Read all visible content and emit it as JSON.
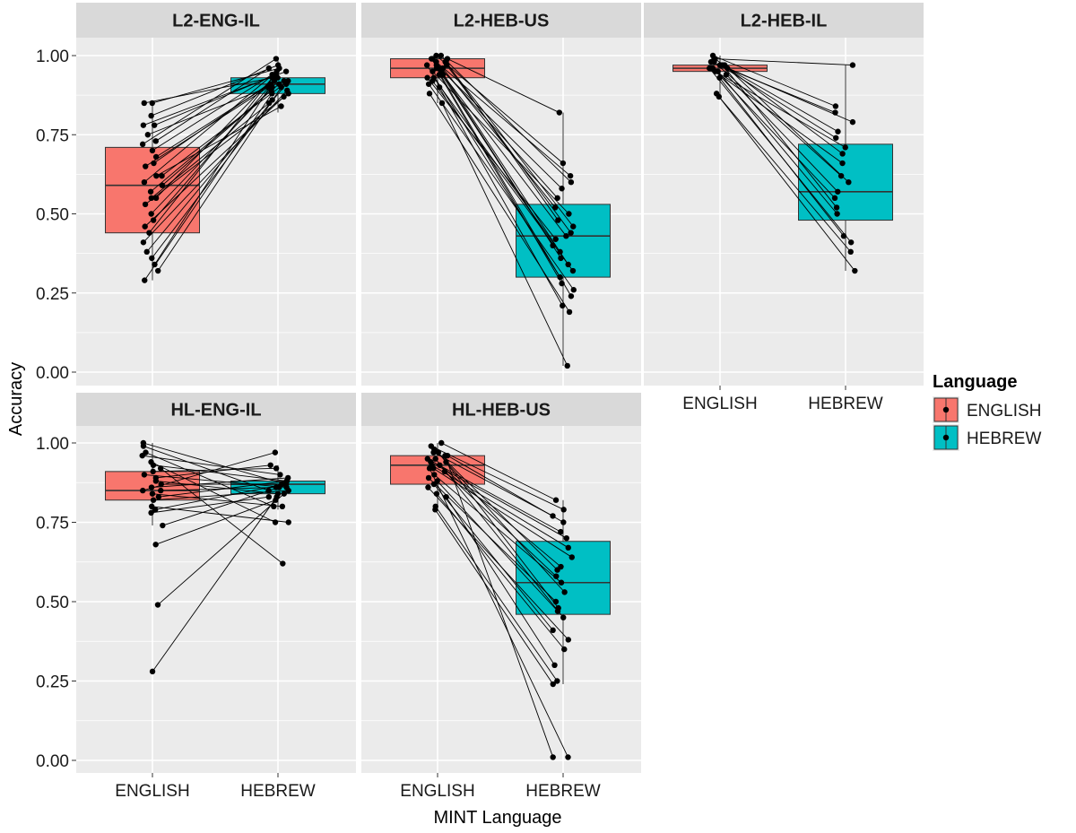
{
  "chart_data": {
    "type": "boxplot",
    "xlabel": "MINT Language",
    "ylabel": "Accuracy",
    "ylim": [
      0,
      1
    ],
    "yticks": [
      "0.00",
      "0.25",
      "0.50",
      "0.75",
      "1.00"
    ],
    "categories": [
      "ENGLISH",
      "HEBREW"
    ],
    "grid": true,
    "legend": {
      "title": "Language",
      "placement": "right",
      "entries": [
        "ENGLISH",
        "HEBREW"
      ]
    },
    "colors": {
      "ENGLISH": "#F8766D",
      "HEBREW": "#00BFC4"
    },
    "panels": [
      {
        "title": "L2-ENG-IL",
        "boxes": {
          "ENGLISH": {
            "lower": 0.29,
            "q1": 0.44,
            "median": 0.59,
            "q3": 0.71,
            "upper": 0.85
          },
          "HEBREW": {
            "lower": 0.82,
            "q1": 0.88,
            "median": 0.91,
            "q3": 0.93,
            "upper": 0.99
          }
        },
        "pairs": [
          [
            0.85,
            0.96
          ],
          [
            0.85,
            0.93
          ],
          [
            0.81,
            0.97
          ],
          [
            0.78,
            0.95
          ],
          [
            0.78,
            0.94
          ],
          [
            0.75,
            0.92
          ],
          [
            0.73,
            0.96
          ],
          [
            0.7,
            0.94
          ],
          [
            0.68,
            0.91
          ],
          [
            0.66,
            0.93
          ],
          [
            0.65,
            0.9
          ],
          [
            0.62,
            0.92
          ],
          [
            0.6,
            0.95
          ],
          [
            0.59,
            0.89
          ],
          [
            0.57,
            0.91
          ],
          [
            0.55,
            0.93
          ],
          [
            0.53,
            0.88
          ],
          [
            0.5,
            0.9
          ],
          [
            0.48,
            0.92
          ],
          [
            0.46,
            0.87
          ],
          [
            0.44,
            0.94
          ],
          [
            0.41,
            0.89
          ],
          [
            0.38,
            0.91
          ],
          [
            0.36,
            0.86
          ],
          [
            0.34,
            0.93
          ],
          [
            0.32,
            0.9
          ],
          [
            0.29,
            0.88
          ],
          [
            0.55,
            0.85
          ],
          [
            0.72,
            0.99
          ],
          [
            0.62,
            0.84
          ]
        ]
      },
      {
        "title": "L2-HEB-US",
        "boxes": {
          "ENGLISH": {
            "lower": 0.85,
            "q1": 0.93,
            "median": 0.96,
            "q3": 0.99,
            "upper": 1.0
          },
          "HEBREW": {
            "lower": 0.02,
            "q1": 0.3,
            "median": 0.43,
            "q3": 0.53,
            "upper": 0.82
          }
        },
        "pairs": [
          [
            0.99,
            0.82
          ],
          [
            1.0,
            0.66
          ],
          [
            0.98,
            0.62
          ],
          [
            0.97,
            0.58
          ],
          [
            0.99,
            0.55
          ],
          [
            0.96,
            0.52
          ],
          [
            0.95,
            0.5
          ],
          [
            0.98,
            0.46
          ],
          [
            0.97,
            0.44
          ],
          [
            0.94,
            0.43
          ],
          [
            0.96,
            0.4
          ],
          [
            0.93,
            0.38
          ],
          [
            0.99,
            0.36
          ],
          [
            0.95,
            0.34
          ],
          [
            0.92,
            0.32
          ],
          [
            0.97,
            0.3
          ],
          [
            0.94,
            0.28
          ],
          [
            0.91,
            0.26
          ],
          [
            0.96,
            0.24
          ],
          [
            0.9,
            0.21
          ],
          [
            0.88,
            0.19
          ],
          [
            0.98,
            0.48
          ],
          [
            0.93,
            0.42
          ],
          [
            0.85,
            0.02
          ],
          [
            1.0,
            0.6
          ]
        ]
      },
      {
        "title": "L2-HEB-IL",
        "boxes": {
          "ENGLISH": {
            "lower": 0.87,
            "q1": 0.95,
            "median": 0.96,
            "q3": 0.97,
            "upper": 1.0
          },
          "HEBREW": {
            "lower": 0.32,
            "q1": 0.48,
            "median": 0.57,
            "q3": 0.72,
            "upper": 0.97
          }
        },
        "pairs": [
          [
            0.99,
            0.97
          ],
          [
            1.0,
            0.84
          ],
          [
            0.98,
            0.82
          ],
          [
            0.97,
            0.79
          ],
          [
            0.96,
            0.76
          ],
          [
            0.97,
            0.74
          ],
          [
            0.95,
            0.71
          ],
          [
            0.96,
            0.66
          ],
          [
            0.98,
            0.62
          ],
          [
            0.94,
            0.57
          ],
          [
            0.96,
            0.55
          ],
          [
            0.97,
            0.52
          ],
          [
            0.95,
            0.5
          ],
          [
            0.93,
            0.43
          ],
          [
            0.96,
            0.41
          ],
          [
            0.87,
            0.38
          ],
          [
            0.88,
            0.32
          ],
          [
            0.97,
            0.6
          ],
          [
            0.99,
            0.69
          ]
        ]
      },
      {
        "title": "HL-ENG-IL",
        "boxes": {
          "ENGLISH": {
            "lower": 0.74,
            "q1": 0.82,
            "median": 0.85,
            "q3": 0.91,
            "upper": 1.0
          },
          "HEBREW": {
            "lower": 0.79,
            "q1": 0.84,
            "median": 0.87,
            "q3": 0.88,
            "upper": 0.93
          }
        },
        "pairs": [
          [
            1.0,
            0.87
          ],
          [
            0.99,
            0.85
          ],
          [
            0.97,
            0.8
          ],
          [
            0.96,
            0.9
          ],
          [
            0.94,
            0.75
          ],
          [
            0.93,
            0.88
          ],
          [
            0.91,
            0.92
          ],
          [
            0.9,
            0.86
          ],
          [
            0.88,
            0.84
          ],
          [
            0.87,
            0.87
          ],
          [
            0.86,
            0.89
          ],
          [
            0.85,
            0.86
          ],
          [
            0.84,
            0.8
          ],
          [
            0.83,
            0.88
          ],
          [
            0.82,
            0.85
          ],
          [
            0.79,
            0.87
          ],
          [
            0.78,
            0.83
          ],
          [
            0.74,
            0.86
          ],
          [
            0.68,
            0.82
          ],
          [
            0.49,
            0.84
          ],
          [
            0.28,
            0.83
          ],
          [
            0.92,
            0.62
          ],
          [
            0.85,
            0.97
          ],
          [
            0.8,
            0.75
          ],
          [
            0.89,
            0.93
          ]
        ]
      },
      {
        "title": "HL-HEB-US",
        "boxes": {
          "ENGLISH": {
            "lower": 0.79,
            "q1": 0.87,
            "median": 0.93,
            "q3": 0.96,
            "upper": 1.0
          },
          "HEBREW": {
            "lower": 0.24,
            "q1": 0.46,
            "median": 0.56,
            "q3": 0.69,
            "upper": 0.82
          }
        },
        "pairs": [
          [
            1.0,
            0.82
          ],
          [
            0.99,
            0.79
          ],
          [
            0.97,
            0.77
          ],
          [
            0.96,
            0.75
          ],
          [
            0.95,
            0.72
          ],
          [
            0.94,
            0.7
          ],
          [
            0.93,
            0.67
          ],
          [
            0.92,
            0.64
          ],
          [
            0.93,
            0.61
          ],
          [
            0.91,
            0.58
          ],
          [
            0.9,
            0.56
          ],
          [
            0.94,
            0.53
          ],
          [
            0.89,
            0.5
          ],
          [
            0.88,
            0.47
          ],
          [
            0.95,
            0.45
          ],
          [
            0.87,
            0.41
          ],
          [
            0.86,
            0.38
          ],
          [
            0.84,
            0.35
          ],
          [
            0.83,
            0.3
          ],
          [
            0.8,
            0.25
          ],
          [
            0.79,
            0.24
          ],
          [
            0.92,
            0.01
          ],
          [
            0.96,
            0.01
          ],
          [
            0.97,
            0.48
          ],
          [
            0.98,
            0.6
          ]
        ]
      }
    ]
  }
}
